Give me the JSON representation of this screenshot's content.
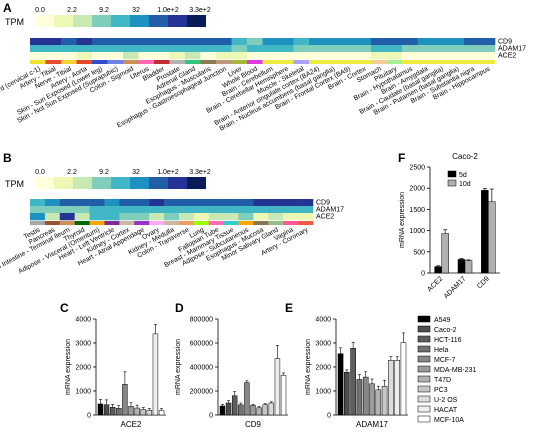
{
  "panels": {
    "A": "A",
    "B": "B",
    "C": "C",
    "D": "D",
    "E": "E",
    "F": "F"
  },
  "tpm": {
    "label": "TPM",
    "ticks": [
      "0.0",
      "2.2",
      "9.2",
      "32",
      "1.0e+2",
      "3.3e+2"
    ],
    "colors": [
      "#ffffd9",
      "#eef8b5",
      "#c8e9b4",
      "#7fcdbb",
      "#41b6c4",
      "#1d91c0",
      "#225ea8",
      "#253494",
      "#081d58"
    ]
  },
  "chart_data": [
    {
      "type": "heatmap",
      "panel": "A",
      "scale": "log",
      "rows": [
        "CD9",
        "ADAM17",
        "ACE2"
      ],
      "columns": [
        "Brain - Spinal cord (cervical c-1)",
        "Artery - Tibial",
        "Nerve - Tibial",
        "Artery - Aorta",
        "Skin - Sun Exposed (Lower leg)",
        "Skin - Not Sun Exposed (Suprapubic)",
        "Colon - Sigmoid",
        "Uterus",
        "Bladder",
        "Prostate",
        "Adrenal Gland",
        "Esophagus - Muscularis",
        "Esophagus - Gastroesophageal Junction",
        "Liver",
        "Whole Blood",
        "Brain - Cerebellum",
        "Brain - Cerebellar Hemisphere",
        "Muscle - Skeletal",
        "Brain - Anterior cingulate cortex (BA24)",
        "Brain - Nucleus accumbens (basal ganglia)",
        "Brain - Frontal Cortex (BA9)",
        "Brain - Cortex",
        "Stomach",
        "Pituitary",
        "Brain - Hypothalamus",
        "Brain - Amygdala",
        "Brain - Caudate (basal ganglia)",
        "Brain - Putamen (basal ganglia)",
        "Brain - Substantia nigra",
        "Brain - Hippocampus"
      ],
      "tissue_colors": [
        "#f1e230",
        "#e64f2e",
        "#f2d333",
        "#e8492c",
        "#2f4fc7",
        "#6c83e3",
        "#cc8f56",
        "#ff68b4",
        "#c12d32",
        "#b3b3b3",
        "#34c57d",
        "#8f7a4f",
        "#bb9a7c",
        "#a9b83c",
        "#df39df",
        "#edec3f",
        "#edec3f",
        "#a9a3f7",
        "#edec3f",
        "#edec3f",
        "#edec3f",
        "#edec3f",
        "#f4ca9b",
        "#a8ee92",
        "#edec3f",
        "#edec3f",
        "#edec3f",
        "#edec3f",
        "#edec3f",
        "#edec3f"
      ],
      "values": [
        [
          7,
          7,
          6,
          7,
          6,
          6,
          6,
          6,
          6,
          6,
          6,
          6,
          6,
          4,
          3,
          5,
          5,
          4,
          5,
          5,
          5,
          5,
          6,
          6,
          6,
          5,
          5,
          5,
          6,
          6
        ],
        [
          4,
          4,
          4,
          4,
          4,
          4,
          4,
          4,
          4,
          4,
          4,
          4,
          4,
          3,
          4,
          4,
          4,
          3,
          3,
          3,
          3,
          3,
          4,
          4,
          3,
          3,
          3,
          3,
          3,
          3
        ],
        [
          0,
          0,
          0,
          1,
          0,
          0,
          2,
          0,
          0,
          1,
          2,
          0,
          1,
          1,
          0,
          0,
          0,
          0,
          0,
          0,
          0,
          0,
          1,
          1,
          0,
          0,
          0,
          0,
          0,
          0
        ]
      ]
    },
    {
      "type": "heatmap",
      "panel": "B",
      "scale": "log",
      "rows": [
        "CD9",
        "ADAM17",
        "ACE2"
      ],
      "columns": [
        "Testis",
        "Pancreas",
        "Small Intestine - Terminal Ileum",
        "Thyroid",
        "Adipose - Visceral (Omentum)",
        "Heart - Left Ventricle",
        "Kidney - Cortex",
        "Heart - Atrial Appendage",
        "Ovary",
        "Kidney - Medulla",
        "Colon - Transverse",
        "Lung",
        "Fallopian Tube",
        "Breast - Mammary Tissue",
        "Adipose - Subcutaneous",
        "Esophagus - Mucosa",
        "Minor Salivary Gland",
        "Vagina",
        "Artery - Coronary"
      ],
      "tissue_colors": [
        "#a8a8a8",
        "#995533",
        "#cc8f56",
        "#006600",
        "#ffa500",
        "#7f2a96",
        "#cdb79e",
        "#9932cc",
        "#ffaaff",
        "#cdb79e",
        "#ee9c61",
        "#9aff00",
        "#ff6bb6",
        "#33cccc",
        "#ffa500",
        "#8b7355",
        "#99bb88",
        "#ff5599",
        "#ee5c42"
      ],
      "values": [
        [
          4,
          5,
          6,
          6,
          6,
          5,
          6,
          6,
          7,
          6,
          6,
          6,
          6,
          6,
          6,
          7,
          7,
          7,
          7
        ],
        [
          3,
          3,
          3,
          3,
          4,
          4,
          4,
          4,
          4,
          4,
          4,
          4,
          4,
          4,
          4,
          4,
          4,
          4,
          4
        ],
        [
          5,
          2,
          7,
          2,
          4,
          4,
          3,
          3,
          2,
          3,
          2,
          1,
          2,
          2,
          3,
          1,
          2,
          1,
          1
        ]
      ]
    },
    {
      "type": "bar",
      "panel": "C",
      "ylabel": "mRNA expression",
      "xlabel": "ACE2",
      "ylim": [
        0,
        4000
      ],
      "yticks": [
        "0",
        "1000",
        "2000",
        "3000",
        "4000"
      ],
      "categories": [
        "A549",
        "Caco-2",
        "HCT-116",
        "Hela",
        "MCF-7",
        "MDA-MB-231",
        "T47D",
        "PC3",
        "U-2 OS",
        "HACAT",
        "MCF-10A"
      ],
      "values": [
        460,
        430,
        320,
        280,
        1280,
        360,
        290,
        230,
        200,
        3380,
        190
      ],
      "errors": [
        190,
        200,
        120,
        110,
        520,
        150,
        120,
        80,
        70,
        400,
        80
      ]
    },
    {
      "type": "bar",
      "panel": "D",
      "ylabel": "mRNA expression",
      "xlabel": "CD9",
      "ylim": [
        0,
        800000
      ],
      "yticks": [
        "0",
        "200000",
        "400000",
        "600000",
        "800000"
      ],
      "categories": [
        "A549",
        "Caco-2",
        "HCT-116",
        "Hela",
        "MCF-7",
        "MDA-MB-231",
        "T47D",
        "PC3",
        "U-2 OS",
        "HACAT",
        "MCF-10A"
      ],
      "values": [
        75000,
        100000,
        160000,
        85000,
        270000,
        80000,
        60000,
        85000,
        100000,
        470000,
        330000
      ],
      "errors": [
        15000,
        20000,
        35000,
        15000,
        15000,
        10000,
        10000,
        10000,
        10000,
        110000,
        20000
      ]
    },
    {
      "type": "bar",
      "panel": "E",
      "ylabel": "mRNA expression",
      "xlabel": "ADAM17",
      "ylim": [
        0,
        4000
      ],
      "yticks": [
        "0",
        "1000",
        "2000",
        "3000",
        "4000"
      ],
      "categories": [
        "A549",
        "Caco-2",
        "HCT-116",
        "Hela",
        "MCF-7",
        "MDA-MB-231",
        "T47D",
        "PC3",
        "U-2 OS",
        "HACAT",
        "MCF-10A"
      ],
      "values": [
        2550,
        1780,
        2780,
        1480,
        1580,
        1300,
        1050,
        1200,
        2280,
        2280,
        3020
      ],
      "errors": [
        250,
        100,
        250,
        200,
        220,
        200,
        150,
        250,
        150,
        150,
        400
      ]
    },
    {
      "type": "bar",
      "panel": "F",
      "title": "Caco-2",
      "ylabel": "mRNA expression",
      "ylim": [
        0,
        2500
      ],
      "yticks": [
        "0",
        "500",
        "1000",
        "1500",
        "2000",
        "2500"
      ],
      "categories": [
        "ACE2",
        "ADAM17",
        "CD9"
      ],
      "series": [
        {
          "name": "5d",
          "values": [
            150,
            320,
            1950
          ],
          "errors": [
            20,
            20,
            40
          ]
        },
        {
          "name": "10d",
          "values": [
            930,
            290,
            1680
          ],
          "errors": [
            90,
            20,
            300
          ]
        }
      ]
    }
  ],
  "legend_E": {
    "items": [
      "A549",
      "Caco-2",
      "HCT-116",
      "Hela",
      "MCF-7",
      "MDA-MB-231",
      "T47D",
      "PC3",
      "U-2 OS",
      "HACAT",
      "MCF-10A"
    ],
    "colors": [
      "#000000",
      "#4d4d4d",
      "#5e5e5e",
      "#727272",
      "#878787",
      "#9c9c9c",
      "#b1b1b1",
      "#c6c6c6",
      "#dcdcdc",
      "#eeeeee",
      "#ffffff"
    ]
  },
  "legend_F": {
    "colors": [
      "#000000",
      "#b0b0b0"
    ]
  }
}
